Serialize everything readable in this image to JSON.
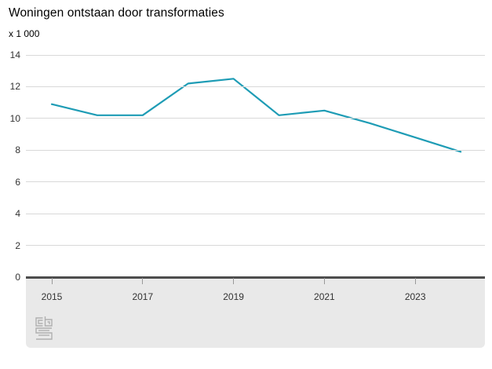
{
  "header": {
    "title": "Woningen ontstaan door transformaties",
    "unit_label": "x 1 000"
  },
  "chart_data": {
    "type": "line",
    "title": "Woningen ontstaan door transformaties",
    "unit": "x 1 000",
    "x": [
      2015,
      2016,
      2017,
      2018,
      2019,
      2020,
      2021,
      2022,
      2023,
      2024
    ],
    "series": [
      {
        "name": "Woningen ontstaan door transformaties",
        "values": [
          10.9,
          10.2,
          10.2,
          12.2,
          12.5,
          10.2,
          10.5,
          9.7,
          8.8,
          7.9
        ]
      }
    ],
    "xticks": [
      2015,
      2017,
      2019,
      2021,
      2023
    ],
    "yticks": [
      0,
      2,
      4,
      6,
      8,
      10,
      12,
      14
    ],
    "ylim": [
      0,
      14
    ],
    "xlabel": "",
    "ylabel": "x 1 000",
    "grid": "horizontal-only",
    "legend": "none",
    "line_color": "#1e9cb5"
  },
  "colors": {
    "accent_line": "#1e9cb5",
    "gridline": "#d9d9d9",
    "axis_line": "#4d4d4d",
    "footer_background": "#e9e9e9",
    "tick": "#999999",
    "title_text": "#000000",
    "axis_text": "#333333",
    "logo": "#b0b0b0"
  },
  "footer": {
    "logo_name": "cbs-logo"
  }
}
